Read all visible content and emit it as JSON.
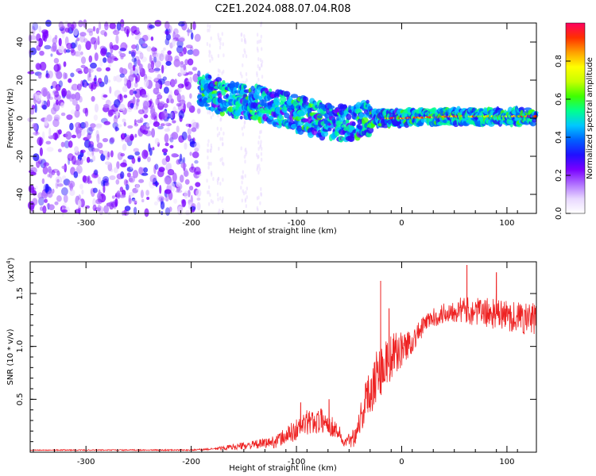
{
  "title": "C2E1.2024.088.07.04.R08",
  "chart_data": [
    {
      "type": "heatmap",
      "name": "spectrogram",
      "xlabel": "Height of straight line (km)",
      "ylabel": "Frequency (Hz)",
      "xlim": [
        -353,
        128
      ],
      "ylim": [
        -50,
        50
      ],
      "xticks": [
        -300,
        -200,
        -100,
        0,
        100
      ],
      "yticks": [
        -40,
        -20,
        0,
        20,
        40
      ],
      "colorbar": {
        "label": "Normalized spectral amplitude",
        "range": [
          0.0,
          1.0
        ],
        "ticks": [
          0.0,
          0.2,
          0.4,
          0.6,
          0.8
        ],
        "colors": [
          "#ffffff",
          "#e8d8ff",
          "#b070ff",
          "#7a00ff",
          "#2010ff",
          "#0060ff",
          "#00c8ff",
          "#00ff90",
          "#40ff00",
          "#c8ff00",
          "#ffff00",
          "#ffa000",
          "#ff3000",
          "#ff0060"
        ]
      },
      "ridge": [
        {
          "x": -190,
          "y": 14
        },
        {
          "x": -170,
          "y": 11
        },
        {
          "x": -150,
          "y": 9
        },
        {
          "x": -130,
          "y": 7
        },
        {
          "x": -110,
          "y": 4
        },
        {
          "x": -90,
          "y": 1
        },
        {
          "x": -70,
          "y": -2
        },
        {
          "x": -50,
          "y": -3
        },
        {
          "x": -30,
          "y": 0
        },
        {
          "x": 0,
          "y": 0
        },
        {
          "x": 50,
          "y": 1
        },
        {
          "x": 128,
          "y": 1
        }
      ],
      "noise_region_x": [
        -353,
        -192
      ]
    },
    {
      "type": "line",
      "name": "snr",
      "xlabel": "Height of straight line (km)",
      "ylabel": "SNR (10 * v/v)",
      "multiplier_label": "(x10",
      "multiplier_exp": "4",
      "multiplier_close": ")",
      "color": "#ee2222",
      "xlim": [
        -353,
        128
      ],
      "ylim": [
        0,
        1.8
      ],
      "xticks": [
        -300,
        -200,
        -100,
        0,
        100
      ],
      "yticks": [
        0.5,
        1.0,
        1.5
      ],
      "ytick_labels": [
        "0.5",
        "1.0",
        "1.5"
      ],
      "envelope": [
        {
          "x": -353,
          "mean": 0.02,
          "amp": 0.005
        },
        {
          "x": -200,
          "mean": 0.02,
          "amp": 0.006
        },
        {
          "x": -180,
          "mean": 0.03,
          "amp": 0.01
        },
        {
          "x": -160,
          "mean": 0.05,
          "amp": 0.03
        },
        {
          "x": -140,
          "mean": 0.07,
          "amp": 0.04
        },
        {
          "x": -120,
          "mean": 0.1,
          "amp": 0.06
        },
        {
          "x": -105,
          "mean": 0.18,
          "amp": 0.1
        },
        {
          "x": -90,
          "mean": 0.28,
          "amp": 0.12
        },
        {
          "x": -75,
          "mean": 0.3,
          "amp": 0.12
        },
        {
          "x": -60,
          "mean": 0.2,
          "amp": 0.08
        },
        {
          "x": -55,
          "mean": 0.08,
          "amp": 0.04
        },
        {
          "x": -45,
          "mean": 0.15,
          "amp": 0.1
        },
        {
          "x": -35,
          "mean": 0.45,
          "amp": 0.2
        },
        {
          "x": -25,
          "mean": 0.72,
          "amp": 0.28
        },
        {
          "x": -10,
          "mean": 0.9,
          "amp": 0.22
        },
        {
          "x": 10,
          "mean": 1.05,
          "amp": 0.12
        },
        {
          "x": 25,
          "mean": 1.25,
          "amp": 0.08
        },
        {
          "x": 50,
          "mean": 1.35,
          "amp": 0.12
        },
        {
          "x": 80,
          "mean": 1.32,
          "amp": 0.14
        },
        {
          "x": 128,
          "mean": 1.25,
          "amp": 0.16
        }
      ],
      "spikes": [
        {
          "x": -20,
          "y": 1.62
        },
        {
          "x": 62,
          "y": 1.77
        },
        {
          "x": 90,
          "y": 1.7
        },
        {
          "x": -69,
          "y": 0.5
        },
        {
          "x": -96,
          "y": 0.47
        },
        {
          "x": -12,
          "y": 1.36
        }
      ]
    }
  ]
}
